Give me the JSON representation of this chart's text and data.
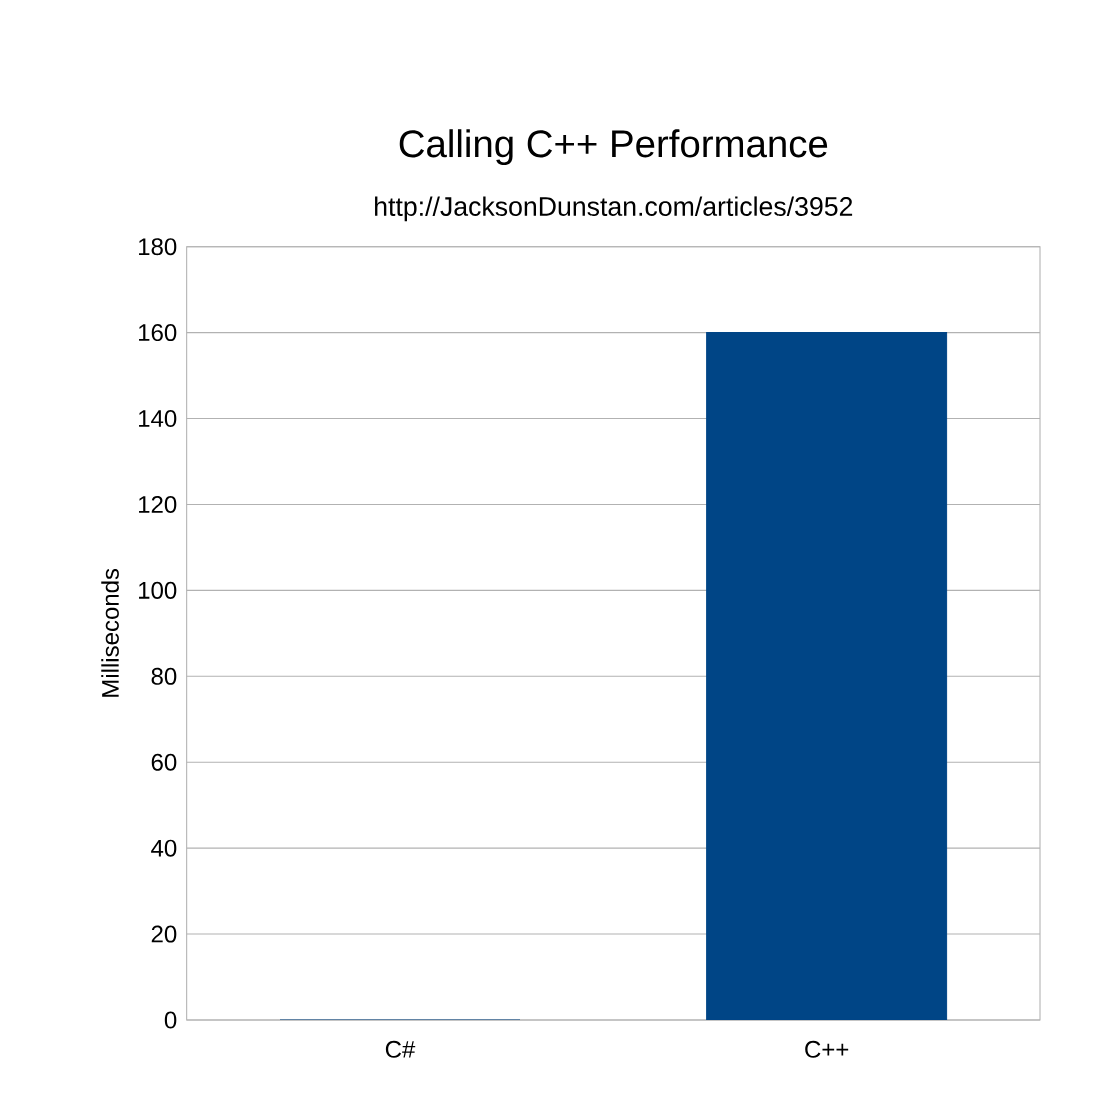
{
  "chart_data": {
    "type": "bar",
    "title": "Calling C++ Performance",
    "subtitle": "http://JacksonDunstan.com/articles/3952",
    "ylabel": "Milliseconds",
    "categories": [
      "C#",
      "C++"
    ],
    "values": [
      0,
      160
    ],
    "color": "#004586",
    "ylim": [
      0,
      180
    ],
    "yticks": [
      0,
      20,
      40,
      60,
      80,
      100,
      120,
      140,
      160,
      180
    ],
    "grid": "y"
  }
}
